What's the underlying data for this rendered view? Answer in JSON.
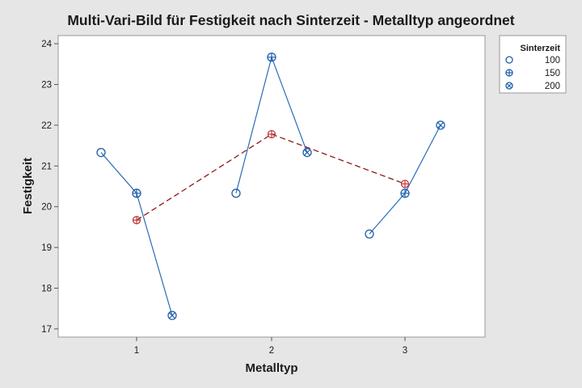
{
  "chart_data": {
    "type": "line",
    "title": "Multi-Vari-Bild für Festigkeit nach Sinterzeit  - Metalltyp angeordnet",
    "xlabel": "Metalltyp",
    "ylabel": "Festigkeit",
    "categories": [
      "1",
      "2",
      "3"
    ],
    "ylim": [
      16.8,
      24.2
    ],
    "yticks": [
      "17",
      "18",
      "19",
      "20",
      "21",
      "22",
      "23",
      "24"
    ],
    "grid": false,
    "legend": {
      "title": "Sinterzeit",
      "placement": "right",
      "entries": [
        {
          "label": "100",
          "marker": "circle"
        },
        {
          "label": "150",
          "marker": "circle-plus"
        },
        {
          "label": "200",
          "marker": "circle-x"
        }
      ]
    },
    "series": [
      {
        "sinterzeit": "100",
        "marker": "circle",
        "values": [
          21.33,
          20.33,
          19.33
        ]
      },
      {
        "sinterzeit": "150",
        "marker": "circle-plus",
        "values": [
          20.33,
          23.67,
          20.33
        ]
      },
      {
        "sinterzeit": "200",
        "marker": "circle-x",
        "values": [
          17.33,
          21.33,
          22.0
        ]
      }
    ],
    "group_means": [
      19.67,
      21.78,
      20.56
    ],
    "colors": {
      "points": "#1f5fa8",
      "within_lines": "#2b6cb8",
      "mean_line": "#8b1a1a",
      "mean_marker": "#c23b3b"
    }
  }
}
